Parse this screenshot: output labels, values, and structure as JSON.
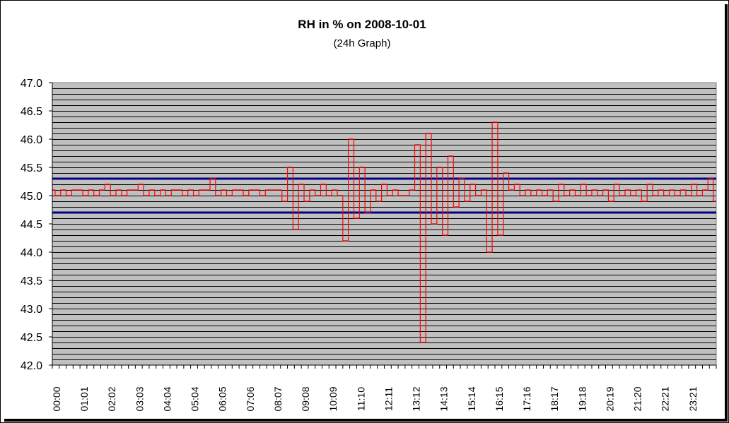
{
  "chart_data": {
    "type": "line",
    "title": "RH in % on 2008-10-01",
    "subtitle": "(24h Graph)",
    "xlabel": "",
    "ylabel": "",
    "ylim": [
      42.0,
      47.0
    ],
    "y_ticks": [
      "42.0",
      "42.5",
      "43.0",
      "43.5",
      "44.0",
      "44.5",
      "45.0",
      "45.5",
      "46.0",
      "46.5",
      "47.0"
    ],
    "x_ticks": [
      "00:00",
      "01:01",
      "02:02",
      "03:03",
      "04:04",
      "05:04",
      "06:05",
      "07:06",
      "08:07",
      "09:08",
      "10:09",
      "11:10",
      "12:11",
      "13:12",
      "14:13",
      "15:14",
      "16:15",
      "17:16",
      "18:17",
      "19:18",
      "20:19",
      "21:20",
      "22:21",
      "23:21"
    ],
    "grid": true,
    "minor_grid_step": 0.1,
    "plot_background": "#c0c0c0",
    "series_color": "#ff0000",
    "reference_lines": [
      {
        "y": 45.3,
        "color": "#000080"
      },
      {
        "y": 44.7,
        "color": "#000080"
      }
    ],
    "baseline": 45.0,
    "x_minutes": [
      0,
      12,
      24,
      36,
      48,
      60,
      72,
      84,
      96,
      108,
      120,
      132,
      144,
      156,
      168,
      180,
      192,
      204,
      216,
      228,
      240,
      252,
      264,
      276,
      288,
      300,
      312,
      324,
      336,
      348,
      360,
      372,
      384,
      396,
      408,
      420,
      432,
      444,
      456,
      468,
      480,
      492,
      504,
      516,
      528,
      540,
      552,
      564,
      576,
      588,
      600,
      612,
      624,
      636,
      648,
      660,
      672,
      684,
      696,
      708,
      720,
      732,
      744,
      756,
      768,
      780,
      792,
      804,
      816,
      828,
      840,
      852,
      864,
      876,
      888,
      900,
      912,
      924,
      936,
      948,
      960,
      972,
      984,
      996,
      1008,
      1020,
      1032,
      1044,
      1056,
      1068,
      1080,
      1092,
      1104,
      1116,
      1128,
      1140,
      1152,
      1164,
      1176,
      1188,
      1200,
      1212,
      1224,
      1236,
      1248,
      1260,
      1272,
      1284,
      1296,
      1308,
      1320,
      1332,
      1344,
      1356,
      1368,
      1380,
      1392,
      1404,
      1416,
      1428,
      1439
    ],
    "values": [
      45.1,
      45.0,
      45.1,
      45.0,
      45.1,
      45.1,
      45.0,
      45.1,
      45.0,
      45.1,
      45.2,
      45.0,
      45.1,
      45.0,
      45.1,
      45.1,
      45.2,
      45.0,
      45.1,
      45.0,
      45.1,
      45.0,
      45.1,
      45.1,
      45.0,
      45.1,
      45.0,
      45.1,
      45.1,
      45.3,
      45.0,
      45.1,
      45.0,
      45.1,
      45.1,
      45.0,
      45.1,
      45.1,
      45.0,
      45.1,
      45.1,
      45.1,
      44.9,
      45.5,
      44.4,
      45.2,
      44.9,
      45.1,
      45.0,
      45.2,
      45.0,
      45.1,
      45.0,
      44.2,
      46.0,
      44.6,
      45.5,
      44.7,
      45.1,
      44.9,
      45.2,
      45.0,
      45.1,
      45.0,
      45.0,
      45.1,
      45.9,
      42.4,
      46.1,
      44.5,
      45.5,
      44.3,
      45.7,
      44.8,
      45.3,
      44.9,
      45.2,
      45.0,
      45.1,
      44.0,
      46.3,
      44.3,
      45.4,
      45.1,
      45.2,
      45.0,
      45.1,
      45.0,
      45.1,
      45.0,
      45.1,
      44.9,
      45.2,
      45.0,
      45.1,
      45.0,
      45.2,
      45.0,
      45.1,
      45.0,
      45.1,
      44.9,
      45.2,
      45.0,
      45.1,
      45.0,
      45.1,
      44.9,
      45.2,
      45.0,
      45.1,
      45.0,
      45.1,
      45.0,
      45.1,
      45.0,
      45.2,
      45.0,
      45.1,
      45.3,
      44.9
    ]
  }
}
